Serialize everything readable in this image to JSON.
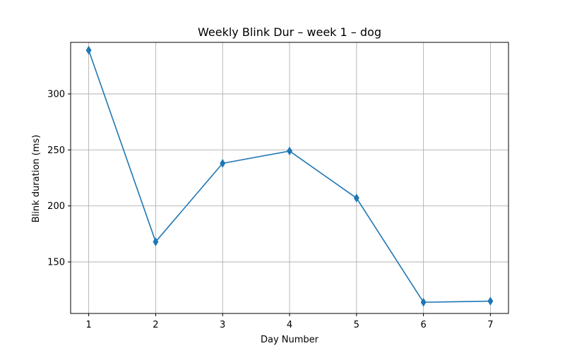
{
  "chart_data": {
    "type": "line",
    "title": "Weekly Blink Dur – week 1 – dog",
    "xlabel": "Day Number",
    "ylabel": "Blink duration (ms)",
    "x": [
      1,
      2,
      3,
      4,
      5,
      6,
      7
    ],
    "xticks": [
      1,
      2,
      3,
      4,
      5,
      6,
      7
    ],
    "yticks": [
      150,
      200,
      250,
      300
    ],
    "xlim": [
      0.73,
      7.27
    ],
    "ylim": [
      104,
      346
    ],
    "grid": true,
    "series": [
      {
        "values": [
          339,
          168,
          238,
          249,
          207,
          114,
          115
        ],
        "color": "#1f77b4",
        "marker": "thin-diamond"
      }
    ]
  }
}
